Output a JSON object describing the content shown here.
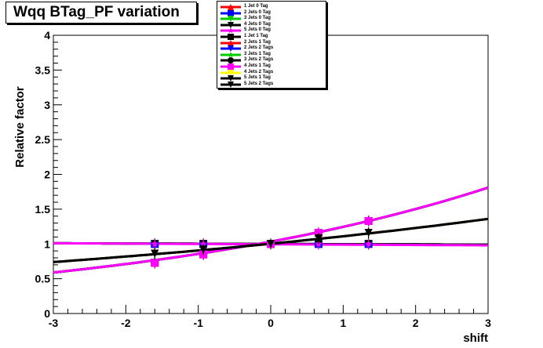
{
  "chart_data": {
    "type": "line",
    "title": "Wqq BTag_PF variation",
    "xlabel": "shift",
    "ylabel": "Relative factor",
    "xlim": [
      -3,
      3
    ],
    "ylim": [
      0,
      4
    ],
    "xticks": [
      "-3",
      "-2",
      "-1",
      "0",
      "1",
      "2",
      "3"
    ],
    "yticks": [
      "0",
      "0.5",
      "1",
      "1.5",
      "2",
      "2.5",
      "3",
      "3.5",
      "4"
    ],
    "x": [
      -1.6,
      -0.93,
      0,
      0.66,
      1.35
    ],
    "legend_position": "top-center",
    "series": [
      {
        "name": "1 Jet  0 Tag",
        "color": "#ff0000",
        "marker": "triangle-up",
        "values": [
          1.0,
          1.0,
          1.0,
          1.0,
          1.0
        ],
        "fit": [
          1.01,
          0.99
        ]
      },
      {
        "name": "2 Jets 0 Tag",
        "color": "#0000ff",
        "marker": "square",
        "values": [
          1.0,
          1.0,
          1.0,
          1.0,
          1.0
        ],
        "fit": [
          1.01,
          0.99
        ]
      },
      {
        "name": "3 Jets 0 Tag",
        "color": "#00cc00",
        "marker": "triangle-down",
        "values": [
          1.0,
          1.0,
          1.0,
          1.0,
          1.0
        ],
        "fit": [
          1.01,
          0.99
        ]
      },
      {
        "name": "4 Jets 0 Tag",
        "color": "#000000",
        "marker": "triangle-down",
        "values": [
          1.0,
          1.0,
          1.0,
          1.0,
          1.0
        ],
        "fit": [
          1.01,
          0.99
        ]
      },
      {
        "name": "5 Jets 0 Tag",
        "color": "#ff00ff",
        "marker": "star",
        "values": [
          1.0,
          1.0,
          1.0,
          1.0,
          1.0
        ],
        "fit": [
          1.01,
          0.98
        ]
      },
      {
        "name": "1 Jet  1 Tag",
        "color": "#000000",
        "marker": "square",
        "values": [
          0.73,
          0.85,
          1.0,
          1.16,
          1.33
        ],
        "fit": [
          0.59,
          1.81
        ]
      },
      {
        "name": "2 Jets 1 Tag",
        "color": "#ff0000",
        "marker": "triangle-up",
        "values": [
          0.73,
          0.85,
          1.0,
          1.16,
          1.33
        ],
        "fit": [
          0.59,
          1.81
        ]
      },
      {
        "name": "2 Jets 2 Tags",
        "color": "#0000ff",
        "marker": "triangle-down",
        "values": [
          0.73,
          0.85,
          1.0,
          1.16,
          1.33
        ],
        "fit": [
          0.59,
          1.81
        ]
      },
      {
        "name": "3 Jets 1 Tag",
        "color": "#00cc00",
        "marker": "star",
        "values": [
          0.73,
          0.85,
          1.0,
          1.16,
          1.33
        ],
        "fit": [
          0.59,
          1.81
        ]
      },
      {
        "name": "3 Jets 2 Tags",
        "color": "#000000",
        "marker": "circle",
        "values": [
          0.73,
          0.85,
          1.0,
          1.16,
          1.33
        ],
        "fit": [
          0.59,
          1.81
        ]
      },
      {
        "name": "4 Jets 1 Tag",
        "color": "#ff00ff",
        "marker": "square",
        "values": [
          0.73,
          0.85,
          1.0,
          1.16,
          1.33
        ],
        "fit": [
          0.59,
          1.81
        ]
      },
      {
        "name": "4 Jets 2 Tags",
        "color": "#ffff00",
        "marker": "triangle-down",
        "values": [
          0.86,
          0.92,
          1.0,
          1.08,
          1.16
        ],
        "fit": [
          0.74,
          1.36
        ]
      },
      {
        "name": "5 Jets 1 Tag",
        "color": "#000000",
        "marker": "triangle-down",
        "values": [
          0.86,
          0.92,
          1.0,
          1.08,
          1.16
        ],
        "fit": [
          0.74,
          1.36
        ]
      },
      {
        "name": "5 Jets 2 Tags",
        "color": "#000000",
        "marker": "triangle-down",
        "values": [
          0.86,
          0.92,
          1.0,
          1.08,
          1.16
        ],
        "fit": [
          0.74,
          1.36
        ]
      }
    ]
  }
}
